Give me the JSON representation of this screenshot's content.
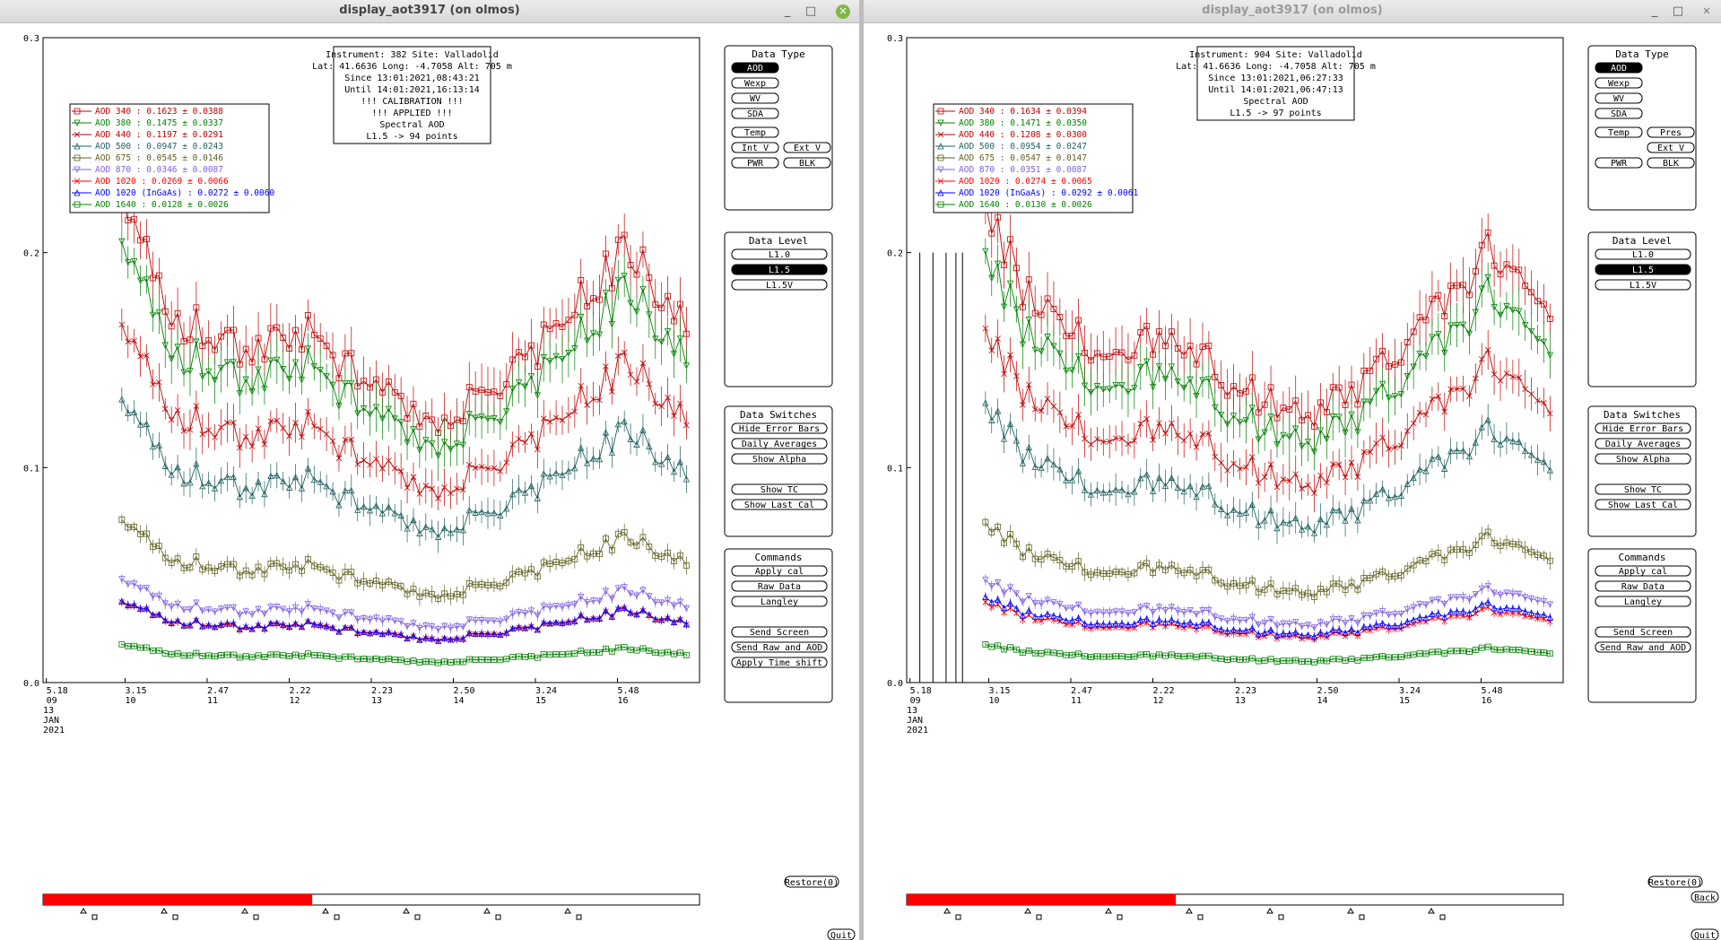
{
  "windows": [
    {
      "title": "display_aot3917 (on olmos)",
      "info": [
        "Instrument: 382 Site: Valladolid",
        "Lat: 41.6636 Long: -4.7058 Alt: 705 m",
        "Since 13:01:2021,08:43:21",
        "Until 14:01:2021,16:13:14",
        "!!! CALIBRATION !!!",
        "!!!   APPLIED   !!!",
        "Spectral AOD",
        "L1.5 -> 94 points"
      ],
      "legend": [
        "AOD 340  : 0.1623 ± 0.0388",
        "AOD 380  : 0.1475 ± 0.0337",
        "AOD 440  : 0.1197 ± 0.0291",
        "AOD 500  : 0.0947 ± 0.0243",
        "AOD 675  : 0.0545 ± 0.0146",
        "AOD 870  : 0.0346 ± 0.0087",
        "AOD 1020  : 0.0269 ± 0.0066",
        "AOD 1020 (InGaAs)  : 0.0272 ± 0.0060",
        "AOD 1640  : 0.0128 ± 0.0026"
      ],
      "data_type_buttons": [
        "Wexp",
        "WV",
        "SDA"
      ],
      "data_type_rows": [
        [
          "Temp",
          ""
        ],
        [
          "Int V",
          "Ext V"
        ],
        [
          "PWR",
          "BLK"
        ]
      ],
      "x_ticks": [
        {
          "top": "5.18",
          "bottom": "09"
        },
        {
          "top": "3.15",
          "bottom": "10"
        },
        {
          "top": "2.47",
          "bottom": "11"
        },
        {
          "top": "2.22",
          "bottom": "12"
        },
        {
          "top": "2.23",
          "bottom": "13"
        },
        {
          "top": "2.50",
          "bottom": "14"
        },
        {
          "top": "3.24",
          "bottom": "15"
        },
        {
          "top": "5.48",
          "bottom": "16"
        }
      ],
      "command_buttons": [
        "Apply cal",
        "Raw Data",
        "Langley",
        "Send Screen",
        "Send Raw and AOD",
        "Apply Time shift"
      ],
      "bottom_right_buttons": [
        "Restore(0)",
        "Quit"
      ],
      "seed": 3917
    },
    {
      "title": "display_aot3917 (on olmos)",
      "info": [
        "Instrument: 904 Site: Valladolid",
        "Lat: 41.6636 Long: -4.7058 Alt: 705 m",
        "Since 13:01:2021,06:27:33",
        "Until 14:01:2021,06:47:13",
        "Spectral AOD",
        "L1.5 -> 97 points"
      ],
      "legend": [
        "AOD 340  : 0.1634 ± 0.0394",
        "AOD 380  : 0.1471 ± 0.0350",
        "AOD 440  : 0.1208 ± 0.0300",
        "AOD 500  : 0.0954 ± 0.0247",
        "AOD 675  : 0.0547 ± 0.0147",
        "AOD 870  : 0.0351 ± 0.0087",
        "AOD 1020  : 0.0274 ± 0.0065",
        "AOD 1020 (InGaAs)  : 0.0292 ± 0.0061",
        "AOD 1640  : 0.0130 ± 0.0026"
      ],
      "data_type_buttons": [
        "Wexp",
        "WV",
        "SDA"
      ],
      "data_type_rows": [
        [
          "Temp",
          "Pres"
        ],
        [
          "",
          "Ext V"
        ],
        [
          "PWR",
          "BLK"
        ]
      ],
      "x_ticks": [
        {
          "top": "5.18",
          "bottom": "09"
        },
        {
          "top": "3.15",
          "bottom": "10"
        },
        {
          "top": "2.47",
          "bottom": "11"
        },
        {
          "top": "2.22",
          "bottom": "12"
        },
        {
          "top": "2.23",
          "bottom": "13"
        },
        {
          "top": "2.50",
          "bottom": "14"
        },
        {
          "top": "3.24",
          "bottom": "15"
        },
        {
          "top": "5.48",
          "bottom": "16"
        }
      ],
      "command_buttons": [
        "Apply cal",
        "Raw Data",
        "Langley",
        "Send Screen",
        "Send Raw and AOD"
      ],
      "bottom_right_buttons": [
        "Restore(0)",
        "Back",
        "Quit"
      ],
      "seed": 904
    }
  ],
  "common": {
    "y_ticks": [
      "0.0",
      "0.1",
      "0.2",
      "0.3"
    ],
    "date_lines": [
      "13",
      "JAN",
      "2021"
    ],
    "data_type_title": "Data Type",
    "data_type_selected": "AOD",
    "data_level_title": "Data Level",
    "data_levels": [
      "L1.0",
      "L1.5",
      "L1.5V"
    ],
    "data_level_selected": "L1.5",
    "data_switches_title": "Data Switches",
    "data_switches": [
      "Hide Error Bars",
      "Daily Averages",
      "Show Alpha",
      "Show TC",
      "Show Last Cal"
    ],
    "commands_title": "Commands",
    "series_colors": [
      "#c00000",
      "#008000",
      "#c00000",
      "#1f5f5f",
      "#606020",
      "#8060e0",
      "#ff0000",
      "#0000ff",
      "#008000"
    ],
    "progress_fraction": 0.41,
    "progress_color": "#ff0000"
  },
  "chart_data": [
    {
      "type": "line",
      "title": "Instrument: 382 Site: Valladolid",
      "ylim": [
        0.0,
        0.3
      ],
      "x_categories": [
        "09",
        "10",
        "11",
        "12",
        "13",
        "14",
        "15",
        "16"
      ],
      "series": [
        {
          "name": "AOD 340",
          "mean": 0.1623
        },
        {
          "name": "AOD 380",
          "mean": 0.1475
        },
        {
          "name": "AOD 440",
          "mean": 0.1197
        },
        {
          "name": "AOD 500",
          "mean": 0.0947
        },
        {
          "name": "AOD 675",
          "mean": 0.0545
        },
        {
          "name": "AOD 870",
          "mean": 0.0346
        },
        {
          "name": "AOD 1020",
          "mean": 0.0269
        },
        {
          "name": "AOD 1020 (InGaAs)",
          "mean": 0.0272
        },
        {
          "name": "AOD 1640",
          "mean": 0.0128
        }
      ],
      "profile_x": [
        0.12,
        0.2,
        0.3,
        0.4,
        0.5,
        0.6,
        0.7,
        0.8,
        0.9,
        1.0
      ],
      "profile_scale": [
        1.35,
        1.05,
        0.95,
        1.0,
        0.85,
        0.75,
        0.85,
        1.05,
        1.25,
        0.95
      ]
    },
    {
      "type": "line",
      "title": "Instrument: 904 Site: Valladolid",
      "ylim": [
        0.0,
        0.3
      ],
      "x_categories": [
        "09",
        "10",
        "11",
        "12",
        "13",
        "14",
        "15",
        "16"
      ],
      "series": [
        {
          "name": "AOD 340",
          "mean": 0.1634
        },
        {
          "name": "AOD 380",
          "mean": 0.1471
        },
        {
          "name": "AOD 440",
          "mean": 0.1208
        },
        {
          "name": "AOD 500",
          "mean": 0.0954
        },
        {
          "name": "AOD 675",
          "mean": 0.0547
        },
        {
          "name": "AOD 870",
          "mean": 0.0351
        },
        {
          "name": "AOD 1020",
          "mean": 0.0274
        },
        {
          "name": "AOD 1020 (InGaAs)",
          "mean": 0.0292
        },
        {
          "name": "AOD 1640",
          "mean": 0.013
        }
      ],
      "profile_x": [
        0.12,
        0.2,
        0.3,
        0.4,
        0.5,
        0.6,
        0.7,
        0.8,
        0.9,
        1.0
      ],
      "profile_scale": [
        1.35,
        1.05,
        0.95,
        1.0,
        0.85,
        0.75,
        0.85,
        1.05,
        1.25,
        0.95
      ]
    }
  ]
}
